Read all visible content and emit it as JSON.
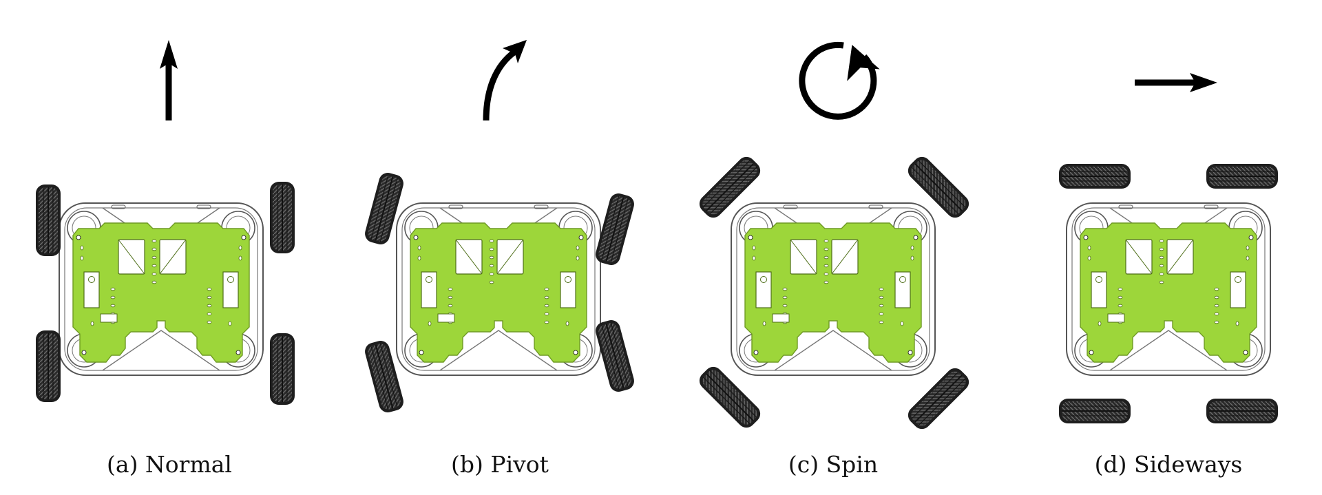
{
  "colors": {
    "plate": "#9dd63a",
    "plate_stroke": "#6f9a25",
    "frame_stroke": "#555555",
    "tire": "#2a2a2a",
    "tread": "#6a6a6a",
    "arrow": "#000000",
    "caption": "#111111"
  },
  "panels": [
    {
      "id": "a",
      "caption": "(a) Normal",
      "motion_icon": "up-arrow-icon",
      "wheel_heading_deg": 0
    },
    {
      "id": "b",
      "caption": "(b) Pivot",
      "motion_icon": "curved-arrow-icon",
      "wheel_heading_deg": 15
    },
    {
      "id": "c",
      "caption": "(c) Spin",
      "motion_icon": "circular-arrow-icon",
      "wheel_heading_deg": 45
    },
    {
      "id": "d",
      "caption": "(d) Sideways",
      "motion_icon": "right-arrow-icon",
      "wheel_heading_deg": 90
    }
  ]
}
